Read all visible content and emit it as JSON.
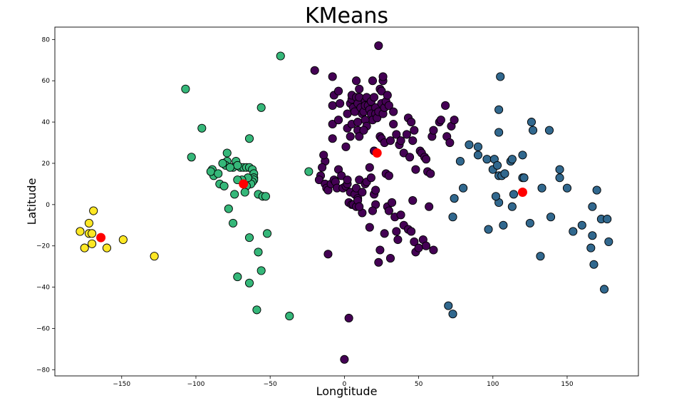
{
  "chart_data": {
    "type": "scatter",
    "title": "KMeans",
    "xlabel": "Longtitude",
    "ylabel": "Latitude",
    "xlim": [
      -195,
      198
    ],
    "ylim": [
      -83,
      86
    ],
    "xticks": [
      -150,
      -100,
      -50,
      0,
      50,
      100,
      150
    ],
    "yticks": [
      -80,
      -60,
      -40,
      -20,
      0,
      20,
      40,
      60,
      80
    ],
    "xtick_labels": [
      "−150",
      "−100",
      "−50",
      "0",
      "50",
      "100",
      "150"
    ],
    "ytick_labels": [
      "−80",
      "−60",
      "−40",
      "−20",
      "0",
      "20",
      "40",
      "60",
      "80"
    ],
    "grid": false,
    "legend": "none",
    "clusters": [
      {
        "color": "#440154",
        "points": [
          [
            -20,
            65
          ],
          [
            -8,
            62
          ],
          [
            -7,
            53
          ],
          [
            -4,
            55
          ],
          [
            -8,
            48
          ],
          [
            -3,
            49
          ],
          [
            2,
            44
          ],
          [
            4,
            49
          ],
          [
            5,
            51
          ],
          [
            5,
            53
          ],
          [
            6,
            47
          ],
          [
            7,
            45
          ],
          [
            8,
            52
          ],
          [
            9,
            49
          ],
          [
            10,
            56
          ],
          [
            10,
            52
          ],
          [
            11,
            47
          ],
          [
            12,
            44
          ],
          [
            13,
            45
          ],
          [
            14,
            50
          ],
          [
            14,
            48
          ],
          [
            15,
            52
          ],
          [
            16,
            48
          ],
          [
            17,
            46
          ],
          [
            18,
            50
          ],
          [
            18,
            44
          ],
          [
            19,
            41
          ],
          [
            20,
            52
          ],
          [
            21,
            47
          ],
          [
            21,
            44
          ],
          [
            22,
            42
          ],
          [
            23,
            45
          ],
          [
            24,
            56
          ],
          [
            25,
            49
          ],
          [
            25,
            55
          ],
          [
            26,
            60
          ],
          [
            26,
            62
          ],
          [
            26,
            44
          ],
          [
            27,
            47
          ],
          [
            28,
            50
          ],
          [
            29,
            53
          ],
          [
            30,
            48
          ],
          [
            33,
            45
          ],
          [
            2,
            37
          ],
          [
            5,
            39
          ],
          [
            9,
            40
          ],
          [
            9,
            36
          ],
          [
            14,
            41
          ],
          [
            15,
            38
          ],
          [
            8,
            60
          ],
          [
            19,
            60
          ],
          [
            23,
            77
          ],
          [
            -8,
            39
          ],
          [
            -4,
            41
          ],
          [
            -8,
            32
          ],
          [
            1,
            28
          ],
          [
            4,
            33
          ],
          [
            10,
            33
          ],
          [
            13,
            36
          ],
          [
            -13,
            21
          ],
          [
            -14,
            24
          ],
          [
            -15,
            18
          ],
          [
            -16,
            14
          ],
          [
            -17,
            12
          ],
          [
            -13,
            10
          ],
          [
            -12,
            8
          ],
          [
            -11,
            7
          ],
          [
            -9,
            10
          ],
          [
            -7,
            12
          ],
          [
            -6,
            11
          ],
          [
            -5,
            8
          ],
          [
            -4,
            17
          ],
          [
            -2,
            14
          ],
          [
            -1,
            8
          ],
          [
            1,
            9
          ],
          [
            2,
            10
          ],
          [
            2,
            12
          ],
          [
            4,
            6
          ],
          [
            7,
            5
          ],
          [
            8,
            8
          ],
          [
            9,
            3
          ],
          [
            10,
            12
          ],
          [
            12,
            6
          ],
          [
            14,
            10
          ],
          [
            15,
            11
          ],
          [
            17,
            18
          ],
          [
            18,
            13
          ],
          [
            20,
            26
          ],
          [
            22,
            25
          ],
          [
            20,
            5
          ],
          [
            21,
            0
          ],
          [
            24,
            33
          ],
          [
            25,
            32
          ],
          [
            27,
            30
          ],
          [
            28,
            15
          ],
          [
            30,
            14
          ],
          [
            31,
            31
          ],
          [
            33,
            39
          ],
          [
            35,
            34
          ],
          [
            37,
            29
          ],
          [
            38,
            31
          ],
          [
            40,
            25
          ],
          [
            42,
            34
          ],
          [
            43,
            42
          ],
          [
            44,
            23
          ],
          [
            45,
            40
          ],
          [
            46,
            31
          ],
          [
            47,
            36
          ],
          [
            48,
            17
          ],
          [
            51,
            26
          ],
          [
            52,
            25
          ],
          [
            54,
            23
          ],
          [
            55,
            22
          ],
          [
            56,
            16
          ],
          [
            58,
            15
          ],
          [
            59,
            33
          ],
          [
            60,
            36
          ],
          [
            64,
            40
          ],
          [
            65,
            41
          ],
          [
            68,
            48
          ],
          [
            69,
            33
          ],
          [
            71,
            30
          ],
          [
            72,
            38
          ],
          [
            74,
            41
          ],
          [
            3,
            1
          ],
          [
            5,
            0
          ],
          [
            6,
            0
          ],
          [
            8,
            -1
          ],
          [
            9,
            2
          ],
          [
            12,
            -4
          ],
          [
            10,
            -1
          ],
          [
            17,
            -11
          ],
          [
            19,
            -3
          ],
          [
            21,
            7
          ],
          [
            23,
            -28
          ],
          [
            24,
            -22
          ],
          [
            27,
            -14
          ],
          [
            29,
            -1
          ],
          [
            30,
            -3
          ],
          [
            31,
            -26
          ],
          [
            32,
            1
          ],
          [
            34,
            -6
          ],
          [
            35,
            -13
          ],
          [
            36,
            -17
          ],
          [
            38,
            -5
          ],
          [
            40,
            -10
          ],
          [
            43,
            -12
          ],
          [
            45,
            -13
          ],
          [
            47,
            -18
          ],
          [
            46,
            2
          ],
          [
            48,
            -23
          ],
          [
            50,
            -21
          ],
          [
            53,
            -17
          ],
          [
            55,
            -20
          ],
          [
            57,
            -1
          ],
          [
            60,
            -22
          ],
          [
            -11,
            -24
          ],
          [
            3,
            -55
          ],
          [
            0,
            -75
          ]
        ]
      },
      {
        "color": "#31688e",
        "points": [
          [
            105,
            62
          ],
          [
            104,
            46
          ],
          [
            104,
            35
          ],
          [
            126,
            40
          ],
          [
            127,
            36
          ],
          [
            138,
            36
          ],
          [
            84,
            29
          ],
          [
            90,
            28
          ],
          [
            90,
            24
          ],
          [
            96,
            22
          ],
          [
            100,
            17
          ],
          [
            101,
            22
          ],
          [
            103,
            19
          ],
          [
            104,
            14
          ],
          [
            106,
            14
          ],
          [
            108,
            15
          ],
          [
            112,
            21
          ],
          [
            113,
            22
          ],
          [
            120,
            24
          ],
          [
            120,
            13
          ],
          [
            145,
            17
          ],
          [
            145,
            13
          ],
          [
            78,
            21
          ],
          [
            80,
            8
          ],
          [
            74,
            3
          ],
          [
            73,
            -6
          ],
          [
            97,
            -12
          ],
          [
            104,
            1
          ],
          [
            102,
            4
          ],
          [
            107,
            -10
          ],
          [
            113,
            -1
          ],
          [
            114,
            5
          ],
          [
            121,
            13
          ],
          [
            125,
            -9
          ],
          [
            133,
            8
          ],
          [
            139,
            -6
          ],
          [
            150,
            8
          ],
          [
            154,
            -13
          ],
          [
            160,
            -10
          ],
          [
            167,
            -1
          ],
          [
            170,
            7
          ],
          [
            173,
            -7
          ],
          [
            178,
            -18
          ],
          [
            177,
            -7
          ],
          [
            166,
            -21
          ],
          [
            167,
            -15
          ],
          [
            168,
            -29
          ],
          [
            132,
            -25
          ],
          [
            70,
            -49
          ],
          [
            73,
            -53
          ],
          [
            175,
            -41
          ]
        ]
      },
      {
        "color": "#35b779",
        "points": [
          [
            -43,
            72
          ],
          [
            -107,
            56
          ],
          [
            -96,
            37
          ],
          [
            -56,
            47
          ],
          [
            -64,
            32
          ],
          [
            -103,
            23
          ],
          [
            -79,
            25
          ],
          [
            -79,
            21
          ],
          [
            -80,
            19
          ],
          [
            -73,
            21
          ],
          [
            -75,
            18
          ],
          [
            -70,
            18
          ],
          [
            -68,
            18
          ],
          [
            -66,
            18
          ],
          [
            -64,
            18
          ],
          [
            -62,
            17
          ],
          [
            -61,
            15
          ],
          [
            -61,
            13
          ],
          [
            -61,
            12
          ],
          [
            -62,
            11
          ],
          [
            -63,
            10
          ],
          [
            -65,
            13
          ],
          [
            -69,
            12
          ],
          [
            -72,
            12
          ],
          [
            -72,
            19
          ],
          [
            -77,
            18
          ],
          [
            -82,
            20
          ],
          [
            -88,
            15
          ],
          [
            -88,
            14
          ],
          [
            -89,
            17
          ],
          [
            -90,
            16
          ],
          [
            -85,
            15
          ],
          [
            -84,
            10
          ],
          [
            -81,
            9
          ],
          [
            -24,
            16
          ],
          [
            -66,
            9
          ],
          [
            -67,
            6
          ],
          [
            -74,
            5
          ],
          [
            -58,
            5
          ],
          [
            -55,
            4
          ],
          [
            -53,
            4
          ],
          [
            -78,
            -2
          ],
          [
            -75,
            -9
          ],
          [
            -52,
            -14
          ],
          [
            -64,
            -16
          ],
          [
            -58,
            -23
          ],
          [
            -56,
            -32
          ],
          [
            -72,
            -35
          ],
          [
            -64,
            -38
          ],
          [
            -59,
            -51
          ],
          [
            -37,
            -54
          ]
        ]
      },
      {
        "color": "#fde725",
        "points": [
          [
            -169,
            -3
          ],
          [
            -172,
            -9
          ],
          [
            -178,
            -13
          ],
          [
            -172,
            -14
          ],
          [
            -170,
            -14
          ],
          [
            -170,
            -19
          ],
          [
            -175,
            -21
          ],
          [
            -160,
            -21
          ],
          [
            -149,
            -17
          ],
          [
            -128,
            -25
          ]
        ]
      }
    ],
    "centroids": {
      "color": "#ff0000",
      "points": [
        [
          22,
          25
        ],
        [
          120,
          6
        ],
        [
          -68,
          10
        ],
        [
          -164,
          -16
        ]
      ]
    }
  }
}
